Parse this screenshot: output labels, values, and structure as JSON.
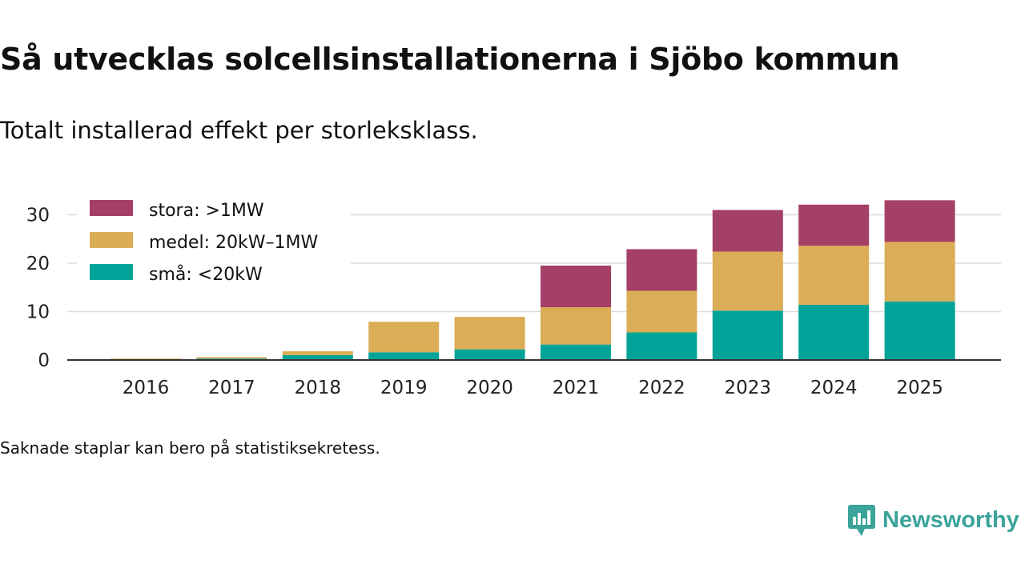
{
  "title": "Så utvecklas solcellsinstallationerna i Sjöbo kommun",
  "subtitle": "Totalt installerad effekt per storleksklass.",
  "note": "Saknade staplar kan bero på statistiksekretess.",
  "logo": {
    "text": "Newsworthy",
    "icon": "newsworthy-chart-bubble-icon"
  },
  "colors": {
    "stora": "#a44068",
    "medel": "#dbad57",
    "sma": "#00a398",
    "grid": "#dddddd",
    "axis": "#333333",
    "brand": "#3aa39a"
  },
  "chart_data": {
    "type": "bar",
    "stacked": true,
    "categories": [
      "2016",
      "2017",
      "2018",
      "2019",
      "2020",
      "2021",
      "2022",
      "2023",
      "2024",
      "2025"
    ],
    "series": [
      {
        "key": "sma",
        "name": "små: <20kW",
        "values": [
          0.1,
          0.3,
          1.0,
          1.6,
          2.2,
          3.2,
          5.7,
          10.2,
          11.4,
          12.1
        ]
      },
      {
        "key": "medel",
        "name": "medel: 20kW–1MW",
        "values": [
          0.2,
          0.3,
          0.8,
          6.3,
          6.7,
          7.7,
          8.6,
          12.2,
          12.2,
          12.3
        ]
      },
      {
        "key": "stora",
        "name": "stora: >1MW",
        "values": [
          0,
          0,
          0,
          0,
          0,
          8.6,
          8.6,
          8.6,
          8.5,
          8.6
        ]
      }
    ],
    "legend_order": [
      "stora",
      "medel",
      "sma"
    ],
    "yticks": [
      0,
      10,
      20,
      30
    ],
    "ylim": [
      0,
      35
    ],
    "xlabel": "",
    "ylabel": "",
    "grid": true,
    "legend_position": "top-left"
  }
}
